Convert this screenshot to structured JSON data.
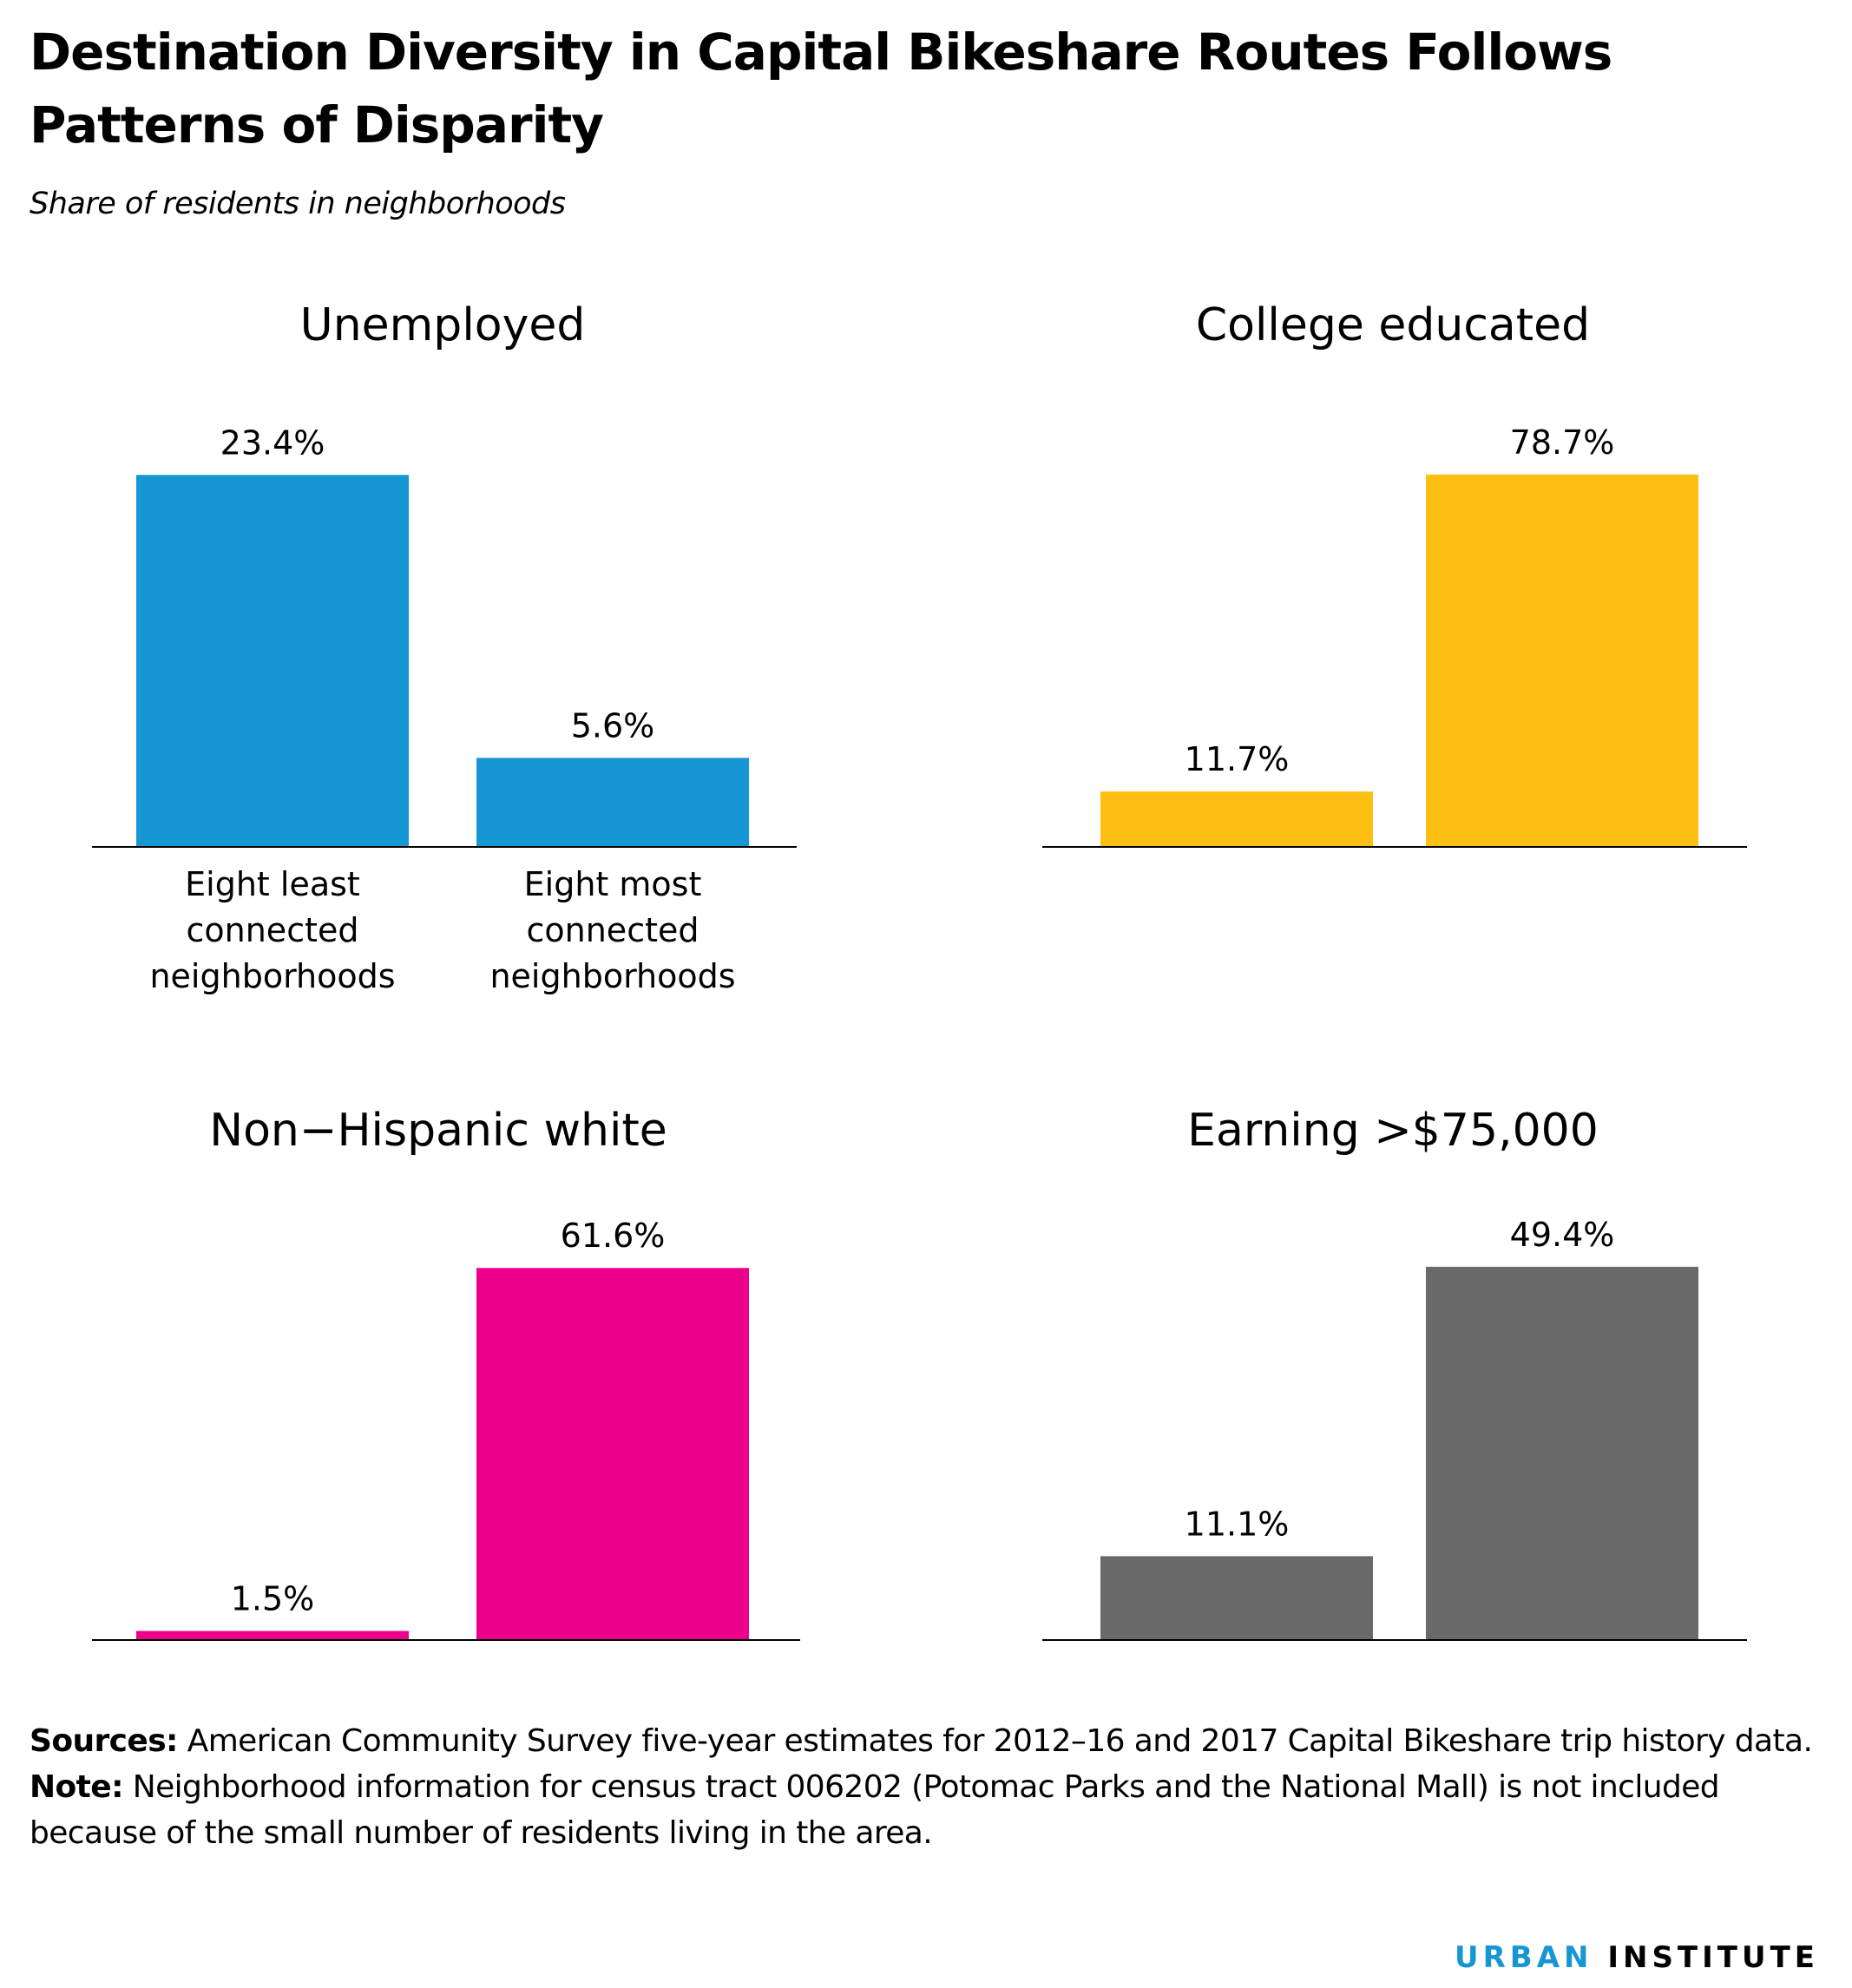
{
  "title": "Destination Diversity in Capital Bikeshare Routes Follows Patterns of Disparity",
  "subtitle": "Share of residents in neighborhoods",
  "chart_data": [
    {
      "type": "bar",
      "title": "Unemployed",
      "categories": [
        "Eight least connected neighborhoods",
        "Eight most connected neighborhoods"
      ],
      "values": [
        23.4,
        5.6
      ],
      "value_labels": [
        "23.4%",
        "5.6%"
      ],
      "color": "#1696d2",
      "ylim": [
        0,
        25
      ],
      "show_category_labels": true
    },
    {
      "type": "bar",
      "title": "College educated",
      "categories": [
        "Eight least connected neighborhoods",
        "Eight most connected neighborhoods"
      ],
      "values": [
        11.7,
        78.7
      ],
      "value_labels": [
        "11.7%",
        "78.7%"
      ],
      "color": "#fdbf11",
      "ylim": [
        0,
        84
      ],
      "show_category_labels": false
    },
    {
      "type": "bar",
      "title": "Non−Hispanic white",
      "categories": [
        "Eight least connected neighborhoods",
        "Eight most connected neighborhoods"
      ],
      "values": [
        1.5,
        61.6
      ],
      "value_labels": [
        "1.5%",
        "61.6%"
      ],
      "color": "#ec008b",
      "ylim": [
        0,
        65.8
      ],
      "show_category_labels": false
    },
    {
      "type": "bar",
      "title": "Earning >$75,000",
      "categories": [
        "Eight least connected neighborhoods",
        "Eight most connected neighborhoods"
      ],
      "values": [
        11.1,
        49.4
      ],
      "value_labels": [
        "11.1%",
        "49.4%"
      ],
      "color": "#696969",
      "ylim": [
        0,
        52.6
      ],
      "show_category_labels": false
    }
  ],
  "category_label_lines": [
    [
      "Eight least",
      "connected",
      "neighborhoods"
    ],
    [
      "Eight most",
      "connected",
      "neighborhoods"
    ]
  ],
  "footnotes": {
    "sources_label": "Sources:",
    "sources_text": " American Community Survey five-year estimates for 2012–16 and 2017 Capital Bikeshare trip history data.",
    "note_label": "Note:",
    "note_text": " Neighborhood information for census tract 006202 (Potomac Parks and the National Mall) is not included because of the small number of residents living in the area."
  },
  "logo": {
    "part1": "URBAN",
    "part2": " INSTITUTE"
  }
}
